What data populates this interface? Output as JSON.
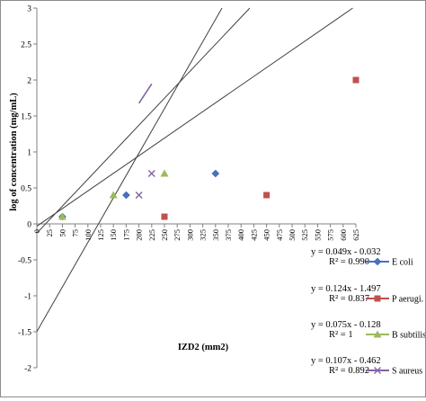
{
  "chart_data": {
    "type": "scatter",
    "xlabel": "IZD2 (mm2)",
    "ylabel": "log of concentration (mg/mL)",
    "xlim": [
      0,
      625
    ],
    "ylim": [
      -2,
      3
    ],
    "x_ticks": [
      "0",
      "25",
      "50",
      "75",
      "100",
      "125",
      "150",
      "175",
      "200",
      "225",
      "250",
      "275",
      "300",
      "325",
      "350",
      "375",
      "400",
      "425",
      "450",
      "475",
      "500",
      "525",
      "550",
      "575",
      "600",
      "625"
    ],
    "y_ticks": [
      "-2",
      "-1.5",
      "-1",
      "-0.5",
      "0",
      "0.5",
      "1",
      "1.5",
      "2",
      "2.5",
      "3"
    ],
    "grid": false,
    "legend_position": "right",
    "series": [
      {
        "name": "E coli",
        "color": "#4472C4",
        "marker": "diamond",
        "points": [
          [
            50,
            0.1
          ],
          [
            175,
            0.4
          ],
          [
            350,
            0.7
          ]
        ],
        "trendline": {
          "slope": 0.049,
          "intercept": -0.032
        },
        "equation": "y = 0.049x - 0.032",
        "r2": "R² = 0.990"
      },
      {
        "name": "P aerugi.",
        "color": "#C0504D",
        "marker": "square",
        "points": [
          [
            250,
            0.1
          ],
          [
            450,
            0.4
          ],
          [
            625,
            2
          ]
        ],
        "trendline": {
          "slope": 0.124,
          "intercept": -1.497
        },
        "equation": "y = 0.124x - 1.497",
        "r2": "R² = 0.837"
      },
      {
        "name": "B subtilis",
        "color": "#9BBB59",
        "marker": "triangle",
        "points": [
          [
            50,
            0.1
          ],
          [
            150,
            0.4
          ],
          [
            250,
            0.7
          ]
        ],
        "trendline": {
          "slope": 0.075,
          "intercept": -0.128
        },
        "equation": "y = 0.075x - 0.128",
        "r2": "R² = 1"
      },
      {
        "name": "S aureus",
        "color": "#8064A2",
        "marker": "cross",
        "points": [
          [
            200,
            0.4
          ],
          [
            225,
            0.7
          ]
        ],
        "trendline": {
          "slope": 0.107,
          "intercept": -0.462
        },
        "equation": "y = 0.107x - 0.462",
        "r2": "R² = 0.892"
      }
    ]
  }
}
